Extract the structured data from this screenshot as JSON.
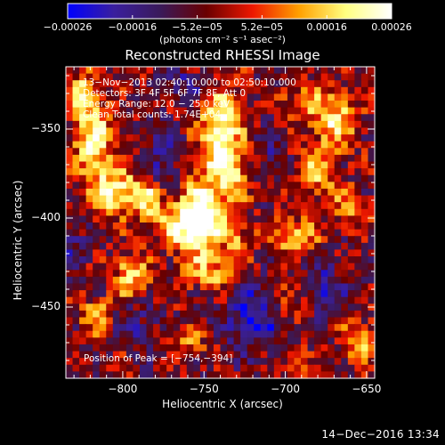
{
  "chart_data": {
    "type": "heatmap",
    "title": "Reconstructed RHESSI Image",
    "xlabel": "Heliocentric X (arcsec)",
    "ylabel": "Heliocentric Y (arcsec)",
    "xlim": [
      -835,
      -645
    ],
    "ylim": [
      -490,
      -315
    ],
    "x_ticks": [
      -800,
      -750,
      -700,
      -650
    ],
    "x_tick_labels": [
      "−800",
      "−750",
      "−700",
      "−650"
    ],
    "y_ticks": [
      -350,
      -400,
      -450
    ],
    "y_tick_labels": [
      "−350",
      "−400",
      "−450"
    ],
    "colorbar": {
      "min": -0.00026,
      "max": 0.00026,
      "tick_labels": [
        "−0.00026",
        "−0.00016",
        "−5.2e−05",
        "5.2e−05",
        "0.00016",
        "0.00026"
      ],
      "label": "(photons cm⁻² s⁻¹ asec⁻²)",
      "colors": [
        "#0000ff",
        "#3a1f9e",
        "#3a1a5a",
        "#6a0000",
        "#ee1800",
        "#ffa000",
        "#ffff80",
        "#ffffff"
      ]
    },
    "info_lines": [
      "13−Nov−2013 02:40:10.000 to 02:50:10.000",
      "Detectors: 3F 4F 5F 6F 7F 8F, Att 0",
      "Energy Range: 12.0 − 25.0 keV",
      "Clean     Total counts: 1.74E+04"
    ],
    "peak_text": "Position of Peak = [−754,−394]",
    "peak": [
      -754,
      -394
    ],
    "sources": [
      {
        "x": -752,
        "y": -397,
        "amp": 1.0,
        "sx": 8,
        "sy": 13
      },
      {
        "x": -760,
        "y": -405,
        "amp": 0.75,
        "sx": 14,
        "sy": 9
      },
      {
        "x": -740,
        "y": -352,
        "amp": 0.85,
        "sx": 9,
        "sy": 18
      },
      {
        "x": -733,
        "y": -375,
        "amp": 0.55,
        "sx": 8,
        "sy": 10
      },
      {
        "x": -818,
        "y": -355,
        "amp": 0.8,
        "sx": 8,
        "sy": 14
      },
      {
        "x": -805,
        "y": -385,
        "amp": 0.8,
        "sx": 13,
        "sy": 9
      },
      {
        "x": -785,
        "y": -390,
        "amp": 0.55,
        "sx": 7,
        "sy": 7
      },
      {
        "x": -825,
        "y": -330,
        "amp": 0.6,
        "sx": 7,
        "sy": 8
      },
      {
        "x": -795,
        "y": -432,
        "amp": 0.7,
        "sx": 7,
        "sy": 8
      },
      {
        "x": -815,
        "y": -455,
        "amp": 0.55,
        "sx": 8,
        "sy": 7
      },
      {
        "x": -745,
        "y": -430,
        "amp": 0.55,
        "sx": 12,
        "sy": 7
      },
      {
        "x": -730,
        "y": -412,
        "amp": 0.4,
        "sx": 6,
        "sy": 7
      },
      {
        "x": -670,
        "y": -345,
        "amp": 0.75,
        "sx": 9,
        "sy": 10
      },
      {
        "x": -690,
        "y": -335,
        "amp": 0.5,
        "sx": 8,
        "sy": 6
      },
      {
        "x": -680,
        "y": -375,
        "amp": 0.55,
        "sx": 9,
        "sy": 11
      },
      {
        "x": -695,
        "y": -410,
        "amp": 0.6,
        "sx": 11,
        "sy": 7
      },
      {
        "x": -660,
        "y": -395,
        "amp": 0.45,
        "sx": 7,
        "sy": 7
      },
      {
        "x": -655,
        "y": -470,
        "amp": 0.6,
        "sx": 7,
        "sy": 8
      },
      {
        "x": -700,
        "y": -445,
        "amp": 0.35,
        "sx": 7,
        "sy": 7
      },
      {
        "x": -695,
        "y": -480,
        "amp": 0.3,
        "sx": 6,
        "sy": 6
      },
      {
        "x": -760,
        "y": -470,
        "amp": 0.35,
        "sx": 8,
        "sy": 6
      }
    ],
    "negative_regions": [
      {
        "x": -720,
        "y": -455,
        "amp": -0.55,
        "sx": 12,
        "sy": 14
      },
      {
        "x": -775,
        "y": -365,
        "amp": -0.4,
        "sx": 8,
        "sy": 12
      },
      {
        "x": -795,
        "y": -460,
        "amp": -0.35,
        "sx": 10,
        "sy": 8
      },
      {
        "x": -675,
        "y": -440,
        "amp": -0.45,
        "sx": 8,
        "sy": 10
      },
      {
        "x": -830,
        "y": -415,
        "amp": -0.3,
        "sx": 6,
        "sy": 10
      },
      {
        "x": -760,
        "y": -325,
        "amp": -0.35,
        "sx": 10,
        "sy": 6
      },
      {
        "x": -710,
        "y": -365,
        "amp": -0.3,
        "sx": 6,
        "sy": 8
      }
    ],
    "noise_amp": 0.28,
    "grid": false
  },
  "footer": {
    "timestamp": "14−Dec−2016 13:34"
  }
}
